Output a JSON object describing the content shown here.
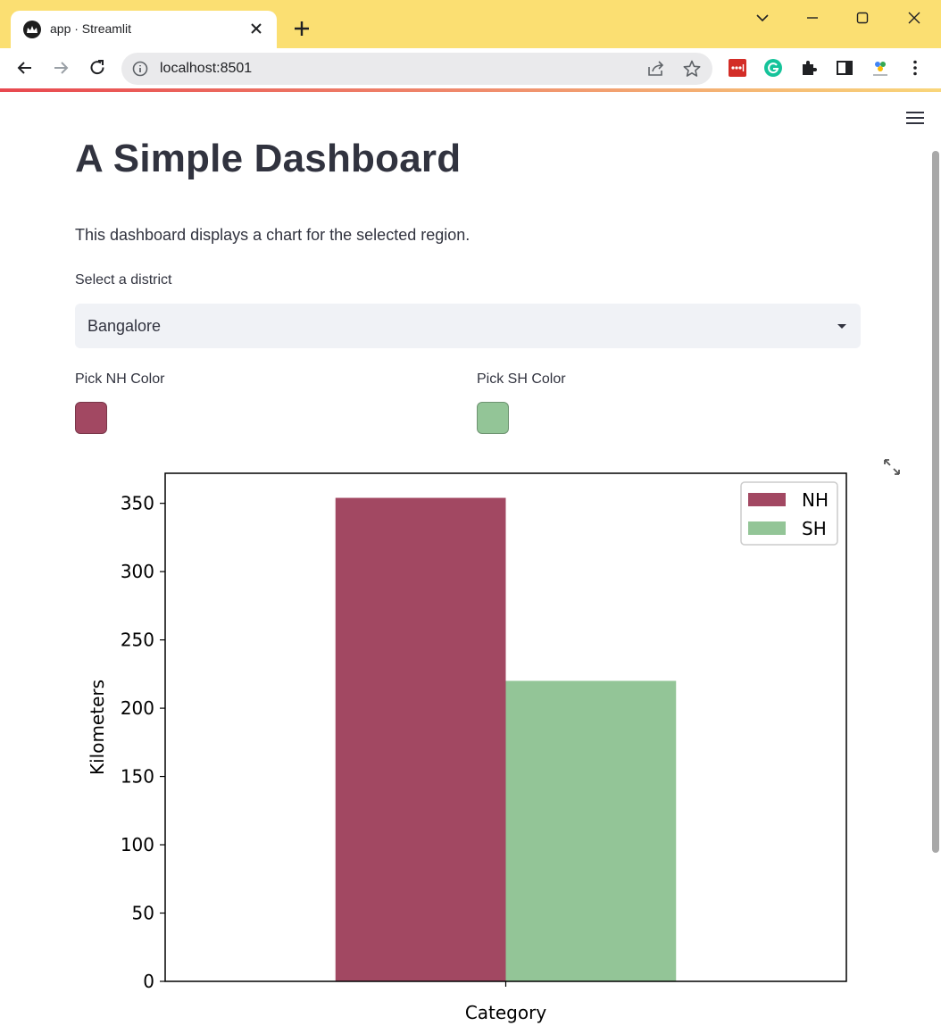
{
  "browser": {
    "tab_title": "app · Streamlit",
    "url": "localhost:8501"
  },
  "app": {
    "title": "A Simple Dashboard",
    "description": "This dashboard displays a chart for the selected region.",
    "district_label": "Select a district",
    "district_value": "Bangalore",
    "nh_color_label": "Pick NH Color",
    "sh_color_label": "Pick SH Color",
    "nh_color": "#a24862",
    "sh_color": "#93c597"
  },
  "chart_data": {
    "type": "bar",
    "xlabel": "Category",
    "ylabel": "Kilometers",
    "ylim": [
      0,
      372
    ],
    "yticks": [
      0,
      50,
      100,
      150,
      200,
      250,
      300,
      350
    ],
    "legend_position": "top-right",
    "grid": false,
    "series": [
      {
        "name": "NH",
        "values": [
          354
        ],
        "color": "#a24862"
      },
      {
        "name": "SH",
        "values": [
          220
        ],
        "color": "#93c597"
      }
    ]
  }
}
